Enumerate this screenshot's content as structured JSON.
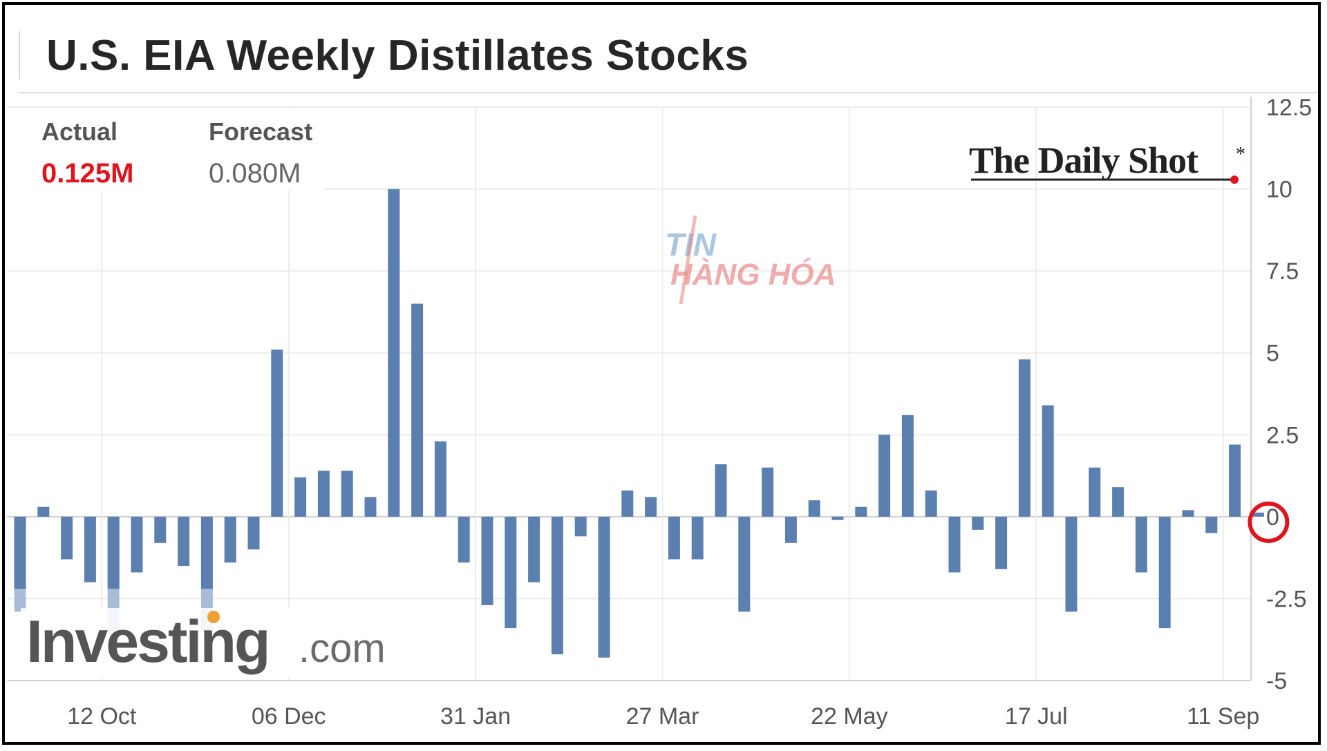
{
  "title": "U.S. EIA Weekly Distillates Stocks",
  "legend": {
    "actual_label": "Actual",
    "actual_value": "0.125M",
    "forecast_label": "Forecast",
    "forecast_value": "0.080M"
  },
  "branding": {
    "daily_shot": "The Daily Shot",
    "daily_shot_mark": "*",
    "investing_main": "Investing",
    "investing_suffix": ".com",
    "watermark_line1": "TIN",
    "watermark_line2": "HÀNG HÓA"
  },
  "colors": {
    "bar": "#5b7fae",
    "bar_forecast": "#a8bcd8",
    "highlight": "#e0141e",
    "actual_text": "#e0141e"
  },
  "chart_data": {
    "type": "bar",
    "title": "U.S. EIA Weekly Distillates Stocks",
    "xlabel": "",
    "ylabel": "",
    "ylim": [
      -5,
      12.5
    ],
    "yticks": [
      "12.5",
      "10",
      "7.5",
      "5",
      "2.5",
      "0",
      "-2.5",
      "-5"
    ],
    "ytick_values": [
      12.5,
      10,
      7.5,
      5,
      2.5,
      0,
      -2.5,
      -5
    ],
    "xtick_labels": [
      "12 Oct",
      "06 Dec",
      "31 Jan",
      "27 Mar",
      "22 May",
      "17 Jul",
      "11 Sep"
    ],
    "xtick_indices": [
      3.5,
      11.5,
      19.5,
      27.5,
      35.5,
      43.5,
      51.5
    ],
    "grid": true,
    "series": [
      {
        "name": "Actual",
        "values": [
          -2.2,
          0.3,
          -1.3,
          -2.0,
          -2.2,
          -1.7,
          -0.8,
          -1.5,
          -2.2,
          -1.4,
          -1.0,
          5.1,
          1.2,
          1.4,
          1.4,
          0.6,
          10.0,
          6.5,
          2.3,
          -1.4,
          -2.7,
          -3.4,
          -2.0,
          -4.2,
          -0.6,
          -4.3,
          0.8,
          0.6,
          -1.3,
          -1.3,
          1.6,
          -2.9,
          1.5,
          -0.8,
          0.5,
          -0.1,
          0.3,
          2.5,
          3.1,
          0.8,
          -1.7,
          -0.4,
          -1.6,
          4.8,
          3.4,
          -2.9,
          1.5,
          0.9,
          -1.7,
          -3.4,
          0.2,
          -0.5,
          2.2,
          0.125
        ]
      },
      {
        "name": "Forecast",
        "values": [
          -2.9,
          null,
          null,
          null,
          -3.5,
          null,
          null,
          null,
          -3.5,
          null,
          null,
          null,
          null,
          null,
          null,
          null,
          null,
          null,
          null,
          null,
          null,
          null,
          null,
          null,
          null,
          null,
          null,
          null,
          null,
          null,
          null,
          null,
          null,
          null,
          null,
          null,
          null,
          null,
          null,
          null,
          null,
          null,
          null,
          null,
          null,
          null,
          null,
          null,
          null,
          null,
          null,
          null,
          null,
          0.08
        ]
      }
    ]
  }
}
